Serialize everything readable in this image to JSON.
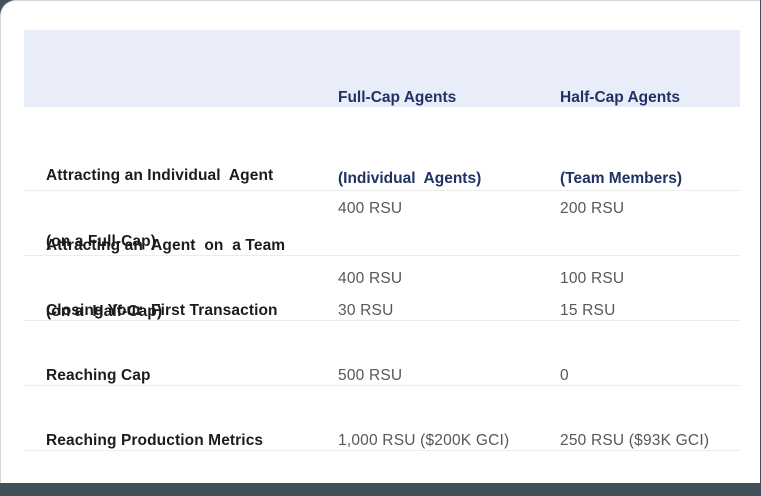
{
  "theme": {
    "outer_background": "#42505a",
    "card_background": "#ffffff",
    "card_border": "#d6d6d6",
    "header_background": "#e8edf9",
    "header_text_color": "#203364",
    "row_label_color": "#1b1c1e",
    "value_text_color": "#55575c",
    "divider_color": "#ededed"
  },
  "table": {
    "columns": [
      {
        "label": "",
        "sublabel": ""
      },
      {
        "label": "Full-Cap Agents",
        "sublabel": "(Individual  Agents)"
      },
      {
        "label": "Half-Cap Agents",
        "sublabel": "(Team Members)"
      }
    ],
    "rows": [
      {
        "label": "Attracting an Individual  Agent",
        "sublabel": "(on a Full-Cap)",
        "full_cap": "400 RSU",
        "half_cap": "200 RSU"
      },
      {
        "label": "Attracting an  Agent  on  a Team",
        "sublabel": "(on a  Half-Cap)",
        "full_cap": "400 RSU",
        "half_cap": "100 RSU"
      },
      {
        "label": "Closing Your  First Transaction",
        "sublabel": "",
        "full_cap": "30 RSU",
        "half_cap": "15 RSU"
      },
      {
        "label": "Reaching Cap",
        "sublabel": "",
        "full_cap": "500 RSU",
        "half_cap": "0"
      },
      {
        "label": "Reaching Production Metrics",
        "sublabel": "",
        "full_cap": "1,000 RSU ($200K GCI)",
        "half_cap": "250 RSU ($93K GCI)"
      }
    ]
  }
}
